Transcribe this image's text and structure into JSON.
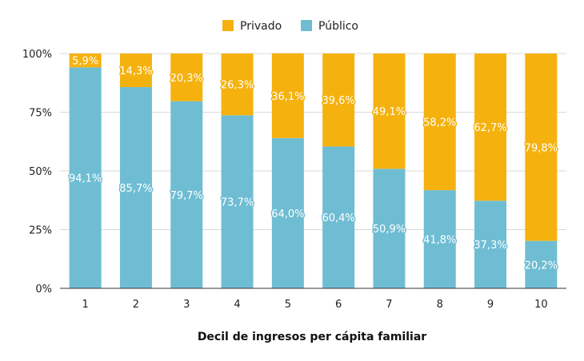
{
  "chart_data": {
    "type": "bar",
    "stacked": true,
    "categories": [
      "1",
      "2",
      "3",
      "4",
      "5",
      "6",
      "7",
      "8",
      "9",
      "10"
    ],
    "series": [
      {
        "name": "Público",
        "values": [
          94.1,
          85.7,
          79.7,
          73.7,
          64.0,
          60.4,
          50.9,
          41.8,
          37.3,
          20.2
        ],
        "labels": [
          "94,1%",
          "85,7%",
          "79,7%",
          "73,7%",
          "64,0%",
          "60,4%",
          "50,9%",
          "41,8%",
          "37,3%",
          "20,2%"
        ],
        "color": "#6fbdd3"
      },
      {
        "name": "Privado",
        "values": [
          5.9,
          14.3,
          20.3,
          26.3,
          36.1,
          39.6,
          49.1,
          58.2,
          62.7,
          79.8
        ],
        "labels": [
          "5,9%",
          "14,3%",
          "20,3%",
          "26,3%",
          "36,1%",
          "39,6%",
          "49,1%",
          "58,2%",
          "62,7%",
          "79,8%"
        ],
        "color": "#f5b20f"
      }
    ],
    "xlabel": "Decil de ingresos per cápita familiar",
    "ylabel": "",
    "ylim": [
      0,
      100
    ],
    "yticks": [
      0,
      25,
      50,
      75,
      100
    ],
    "ytick_labels": [
      "0%",
      "25%",
      "50%",
      "75%",
      "100%"
    ],
    "grid": true,
    "legend": {
      "placement": "top-center",
      "order": [
        "Privado",
        "Público"
      ]
    }
  }
}
